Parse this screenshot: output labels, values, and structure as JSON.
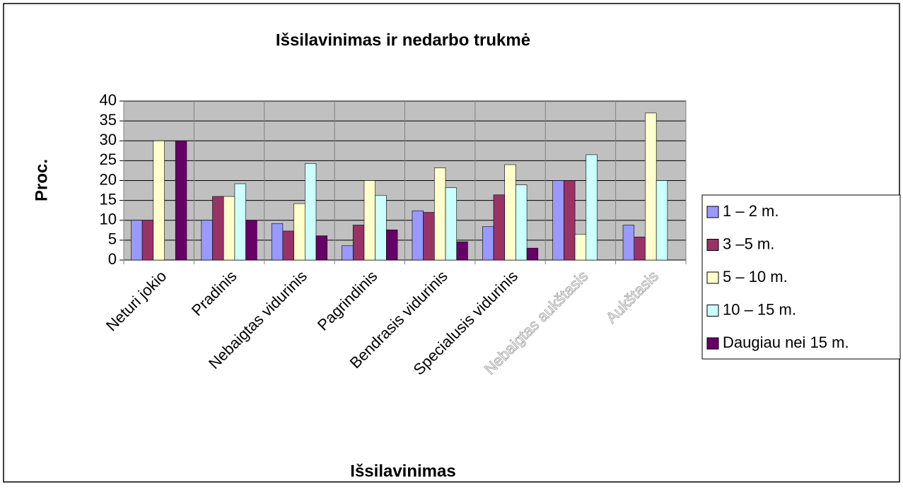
{
  "chart_data": {
    "type": "bar",
    "title": "Išsilavinimas ir nedarbo trukmė",
    "xlabel": "Išsilavinimas",
    "ylabel": "Proc.",
    "categories": [
      "Neturi jokio",
      "Pradinis",
      "Nebaigtas vidurinis",
      "Pagrindinis",
      "Bendrasis vidurinis",
      "Specialusis vidurinis",
      "Nebaigtas aukštasis",
      "Aukštasis"
    ],
    "series": [
      {
        "name": "1 – 2 m.",
        "color": "#9999ff",
        "values": [
          10,
          10,
          9.2,
          3.6,
          12.4,
          8.4,
          20,
          8.8
        ]
      },
      {
        "name": "3 –5 m.",
        "color": "#993366",
        "values": [
          10,
          16,
          7.3,
          8.8,
          12,
          16.4,
          20,
          5.8
        ]
      },
      {
        "name": "5 – 10 m.",
        "color": "#ffffcc",
        "values": [
          30,
          16,
          14.2,
          20,
          23.2,
          24,
          6.5,
          37
        ]
      },
      {
        "name": "10 – 15 m.",
        "color": "#ccffff",
        "values": [
          0,
          19.2,
          24.3,
          16.3,
          18.2,
          18.9,
          26.5,
          20
        ]
      },
      {
        "name": "Daugiau nei 15 m.",
        "color": "#660066",
        "values": [
          30,
          10,
          6.1,
          7.6,
          4.6,
          3,
          0,
          0
        ]
      }
    ],
    "ylim": [
      0,
      40
    ],
    "yticks": [
      0,
      5,
      10,
      15,
      20,
      25,
      30,
      35,
      40
    ],
    "grid": true,
    "legend": "right"
  }
}
